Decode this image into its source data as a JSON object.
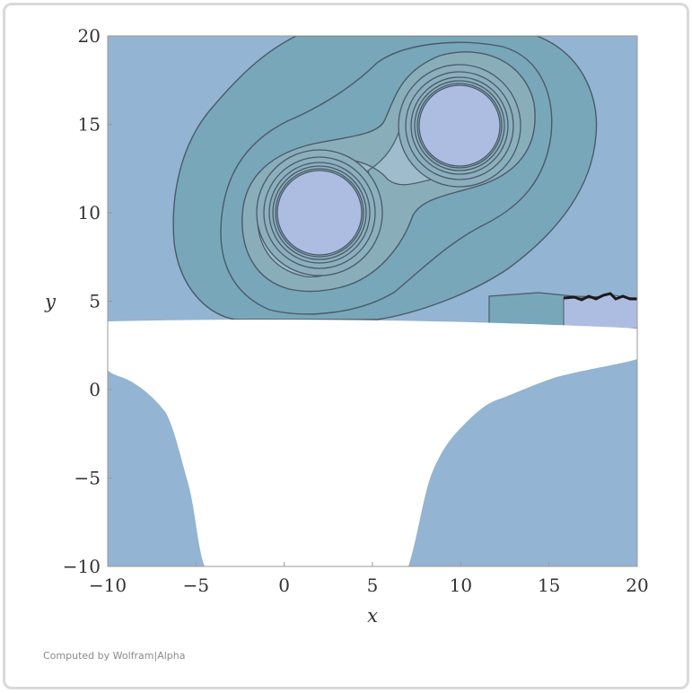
{
  "chart_data": {
    "type": "contour",
    "xlabel": "x",
    "ylabel": "y",
    "xlim": [
      -10,
      20
    ],
    "ylim": [
      -10,
      20
    ],
    "xticks": [
      -10,
      -5,
      0,
      5,
      10,
      15,
      20
    ],
    "yticks": [
      -10,
      -5,
      0,
      5,
      10,
      15,
      20
    ],
    "xtick_labels": [
      "−10",
      "−5",
      "0",
      "5",
      "10",
      "15",
      "20"
    ],
    "ytick_labels": [
      "−10",
      "−5",
      "0",
      "5",
      "10",
      "15",
      "20"
    ],
    "peaks": [
      {
        "x": 2,
        "y": 10
      },
      {
        "x": 10,
        "y": 15
      }
    ],
    "grid": false,
    "legend": "none"
  },
  "colors": {
    "background_fill": "#93b4d2",
    "outer_contour_fill": "#79a7ba",
    "inner_contour_fill": "#9ebccc",
    "peak_fill": "#adbde2",
    "contour_line": "#4a5a68",
    "undefined_region": "#ffffff"
  },
  "credit": "Computed by Wolfram|Alpha"
}
